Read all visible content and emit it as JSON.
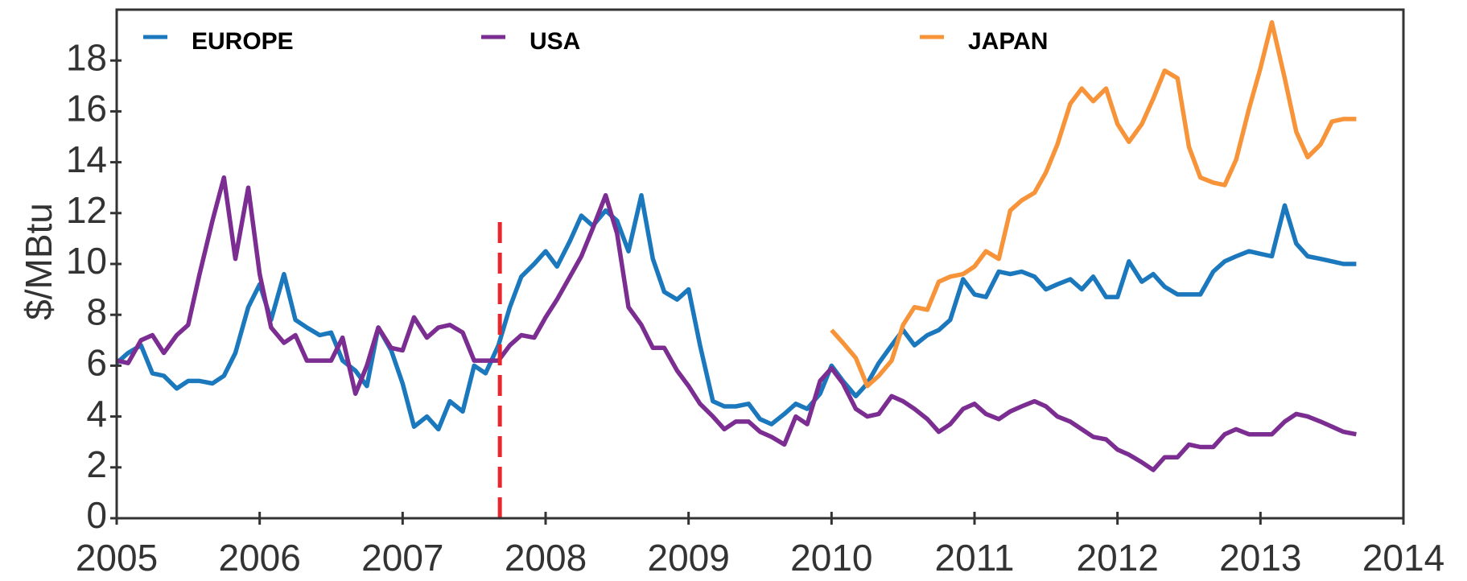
{
  "chart_data": {
    "type": "line",
    "y_label": "$/MBtu",
    "xlim": [
      2005,
      2014
    ],
    "ylim": [
      0,
      20
    ],
    "xticks": [
      2005,
      2006,
      2007,
      2008,
      2009,
      2010,
      2011,
      2012,
      2013,
      2014
    ],
    "yticks": [
      0,
      2,
      4,
      6,
      8,
      10,
      12,
      14,
      16,
      18
    ],
    "x": [
      2005.0,
      2005.08,
      2005.17,
      2005.25,
      2005.33,
      2005.42,
      2005.5,
      2005.58,
      2005.67,
      2005.75,
      2005.83,
      2005.92,
      2006.0,
      2006.08,
      2006.17,
      2006.25,
      2006.33,
      2006.42,
      2006.5,
      2006.58,
      2006.67,
      2006.75,
      2006.83,
      2006.92,
      2007.0,
      2007.08,
      2007.17,
      2007.25,
      2007.33,
      2007.42,
      2007.5,
      2007.58,
      2007.67,
      2007.75,
      2007.83,
      2007.92,
      2008.0,
      2008.08,
      2008.17,
      2008.25,
      2008.33,
      2008.42,
      2008.5,
      2008.58,
      2008.67,
      2008.75,
      2008.83,
      2008.92,
      2009.0,
      2009.08,
      2009.17,
      2009.25,
      2009.33,
      2009.42,
      2009.5,
      2009.58,
      2009.67,
      2009.75,
      2009.83,
      2009.92,
      2010.0,
      2010.08,
      2010.17,
      2010.25,
      2010.33,
      2010.42,
      2010.5,
      2010.58,
      2010.67,
      2010.75,
      2010.83,
      2010.92,
      2011.0,
      2011.08,
      2011.17,
      2011.25,
      2011.33,
      2011.42,
      2011.5,
      2011.58,
      2011.67,
      2011.75,
      2011.83,
      2011.92,
      2012.0,
      2012.08,
      2012.17,
      2012.25,
      2012.33,
      2012.42,
      2012.5,
      2012.58,
      2012.67,
      2012.75,
      2012.83,
      2012.92,
      2013.0,
      2013.08,
      2013.17,
      2013.25,
      2013.33,
      2013.42,
      2013.5,
      2013.58,
      2013.67
    ],
    "series": [
      {
        "name": "EUROPE",
        "color": "#1b78bd",
        "values": [
          6.1,
          6.5,
          6.8,
          5.7,
          5.6,
          5.1,
          5.4,
          5.4,
          5.3,
          5.6,
          6.5,
          8.3,
          9.2,
          7.8,
          9.6,
          7.8,
          7.5,
          7.2,
          7.3,
          6.2,
          5.8,
          5.2,
          7.5,
          6.6,
          5.3,
          3.6,
          4.0,
          3.5,
          4.6,
          4.2,
          6.0,
          5.7,
          6.8,
          8.3,
          9.5,
          10.0,
          10.5,
          9.9,
          10.9,
          11.9,
          11.5,
          12.1,
          11.7,
          10.5,
          12.7,
          10.2,
          8.9,
          8.6,
          9.0,
          6.8,
          4.6,
          4.4,
          4.4,
          4.5,
          3.9,
          3.7,
          4.1,
          4.5,
          4.3,
          4.9,
          6.0,
          5.4,
          4.8,
          5.3,
          6.1,
          6.8,
          7.4,
          6.8,
          7.2,
          7.4,
          7.8,
          9.4,
          8.8,
          8.7,
          9.7,
          9.6,
          9.7,
          9.5,
          9.0,
          9.2,
          9.4,
          9.0,
          9.5,
          8.7,
          8.7,
          10.1,
          9.3,
          9.6,
          9.1,
          8.8,
          8.8,
          8.8,
          9.7,
          10.1,
          10.3,
          10.5,
          10.4,
          10.3,
          12.3,
          10.8,
          10.3,
          10.2,
          10.1,
          10.0,
          10.0
        ]
      },
      {
        "name": "USA",
        "color": "#7b2d91",
        "values": [
          6.2,
          6.1,
          7.0,
          7.2,
          6.5,
          7.2,
          7.6,
          9.6,
          11.7,
          13.4,
          10.2,
          13.0,
          9.6,
          7.5,
          6.9,
          7.2,
          6.2,
          6.2,
          6.2,
          7.1,
          4.9,
          6.0,
          7.5,
          6.7,
          6.6,
          7.9,
          7.1,
          7.5,
          7.6,
          7.3,
          6.2,
          6.2,
          6.2,
          6.8,
          7.2,
          7.1,
          7.9,
          8.6,
          9.5,
          10.3,
          11.4,
          12.7,
          11.2,
          8.3,
          7.6,
          6.7,
          6.7,
          5.8,
          5.2,
          4.5,
          4.0,
          3.5,
          3.8,
          3.8,
          3.4,
          3.2,
          2.9,
          4.0,
          3.7,
          5.4,
          5.9,
          5.3,
          4.3,
          4.0,
          4.1,
          4.8,
          4.6,
          4.3,
          3.9,
          3.4,
          3.7,
          4.3,
          4.5,
          4.1,
          3.9,
          4.2,
          4.4,
          4.6,
          4.4,
          4.0,
          3.8,
          3.5,
          3.2,
          3.1,
          2.7,
          2.5,
          2.2,
          1.9,
          2.4,
          2.4,
          2.9,
          2.8,
          2.8,
          3.3,
          3.5,
          3.3,
          3.3,
          3.3,
          3.8,
          4.1,
          4.0,
          3.8,
          3.6,
          3.4,
          3.3
        ]
      },
      {
        "name": "JAPAN",
        "color": "#f7943a",
        "values": [
          null,
          null,
          null,
          null,
          null,
          null,
          null,
          null,
          null,
          null,
          null,
          null,
          null,
          null,
          null,
          null,
          null,
          null,
          null,
          null,
          null,
          null,
          null,
          null,
          null,
          null,
          null,
          null,
          null,
          null,
          null,
          null,
          null,
          null,
          null,
          null,
          null,
          null,
          null,
          null,
          null,
          null,
          null,
          null,
          null,
          null,
          null,
          null,
          null,
          null,
          null,
          null,
          null,
          null,
          null,
          null,
          null,
          null,
          null,
          null,
          7.4,
          6.9,
          6.3,
          5.2,
          5.6,
          6.2,
          7.6,
          8.3,
          8.2,
          9.3,
          9.5,
          9.6,
          9.9,
          10.5,
          10.2,
          12.1,
          12.5,
          12.8,
          13.6,
          14.7,
          16.3,
          16.9,
          16.4,
          16.9,
          15.5,
          14.8,
          15.5,
          16.5,
          17.6,
          17.3,
          14.6,
          13.4,
          13.2,
          13.1,
          14.1,
          16.1,
          17.7,
          19.5,
          17.3,
          15.2,
          14.2,
          14.7,
          15.6,
          15.7,
          15.7
        ]
      }
    ],
    "reference_line": {
      "x": 2007.68,
      "y": 11.7,
      "color": "#e8262b"
    }
  }
}
